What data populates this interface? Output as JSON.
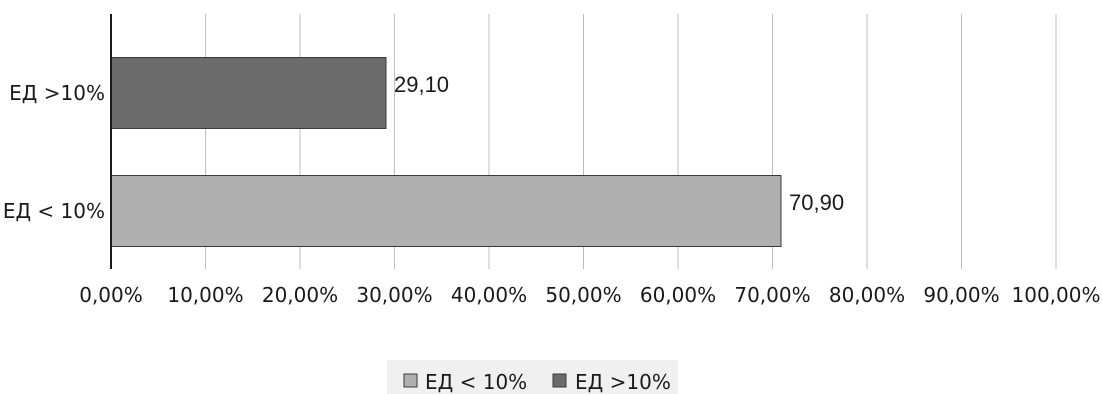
{
  "chart_data": {
    "type": "bar",
    "orientation": "horizontal",
    "categories": [
      "ЕД >10%",
      "ЕД < 10%"
    ],
    "values": [
      29.1,
      70.9
    ],
    "data_labels": [
      "29,10",
      "70,90"
    ],
    "colors": [
      "#6b6b6b",
      "#b0b0b0"
    ],
    "xlim": [
      0,
      100
    ],
    "x_ticks": [
      0,
      10,
      20,
      30,
      40,
      50,
      60,
      70,
      80,
      90,
      100
    ],
    "x_tick_labels": [
      "0,00%",
      "10,00%",
      "20,00%",
      "30,00%",
      "40,00%",
      "50,00%",
      "60,00%",
      "70,00%",
      "80,00%",
      "90,00%",
      "100,00%"
    ],
    "grid": "vertical",
    "legend": {
      "placement": "bottom-center",
      "entries": [
        {
          "label": "ЕД < 10%",
          "color": "#b0b0b0"
        },
        {
          "label": "ЕД >10%",
          "color": "#6b6b6b"
        }
      ]
    }
  }
}
